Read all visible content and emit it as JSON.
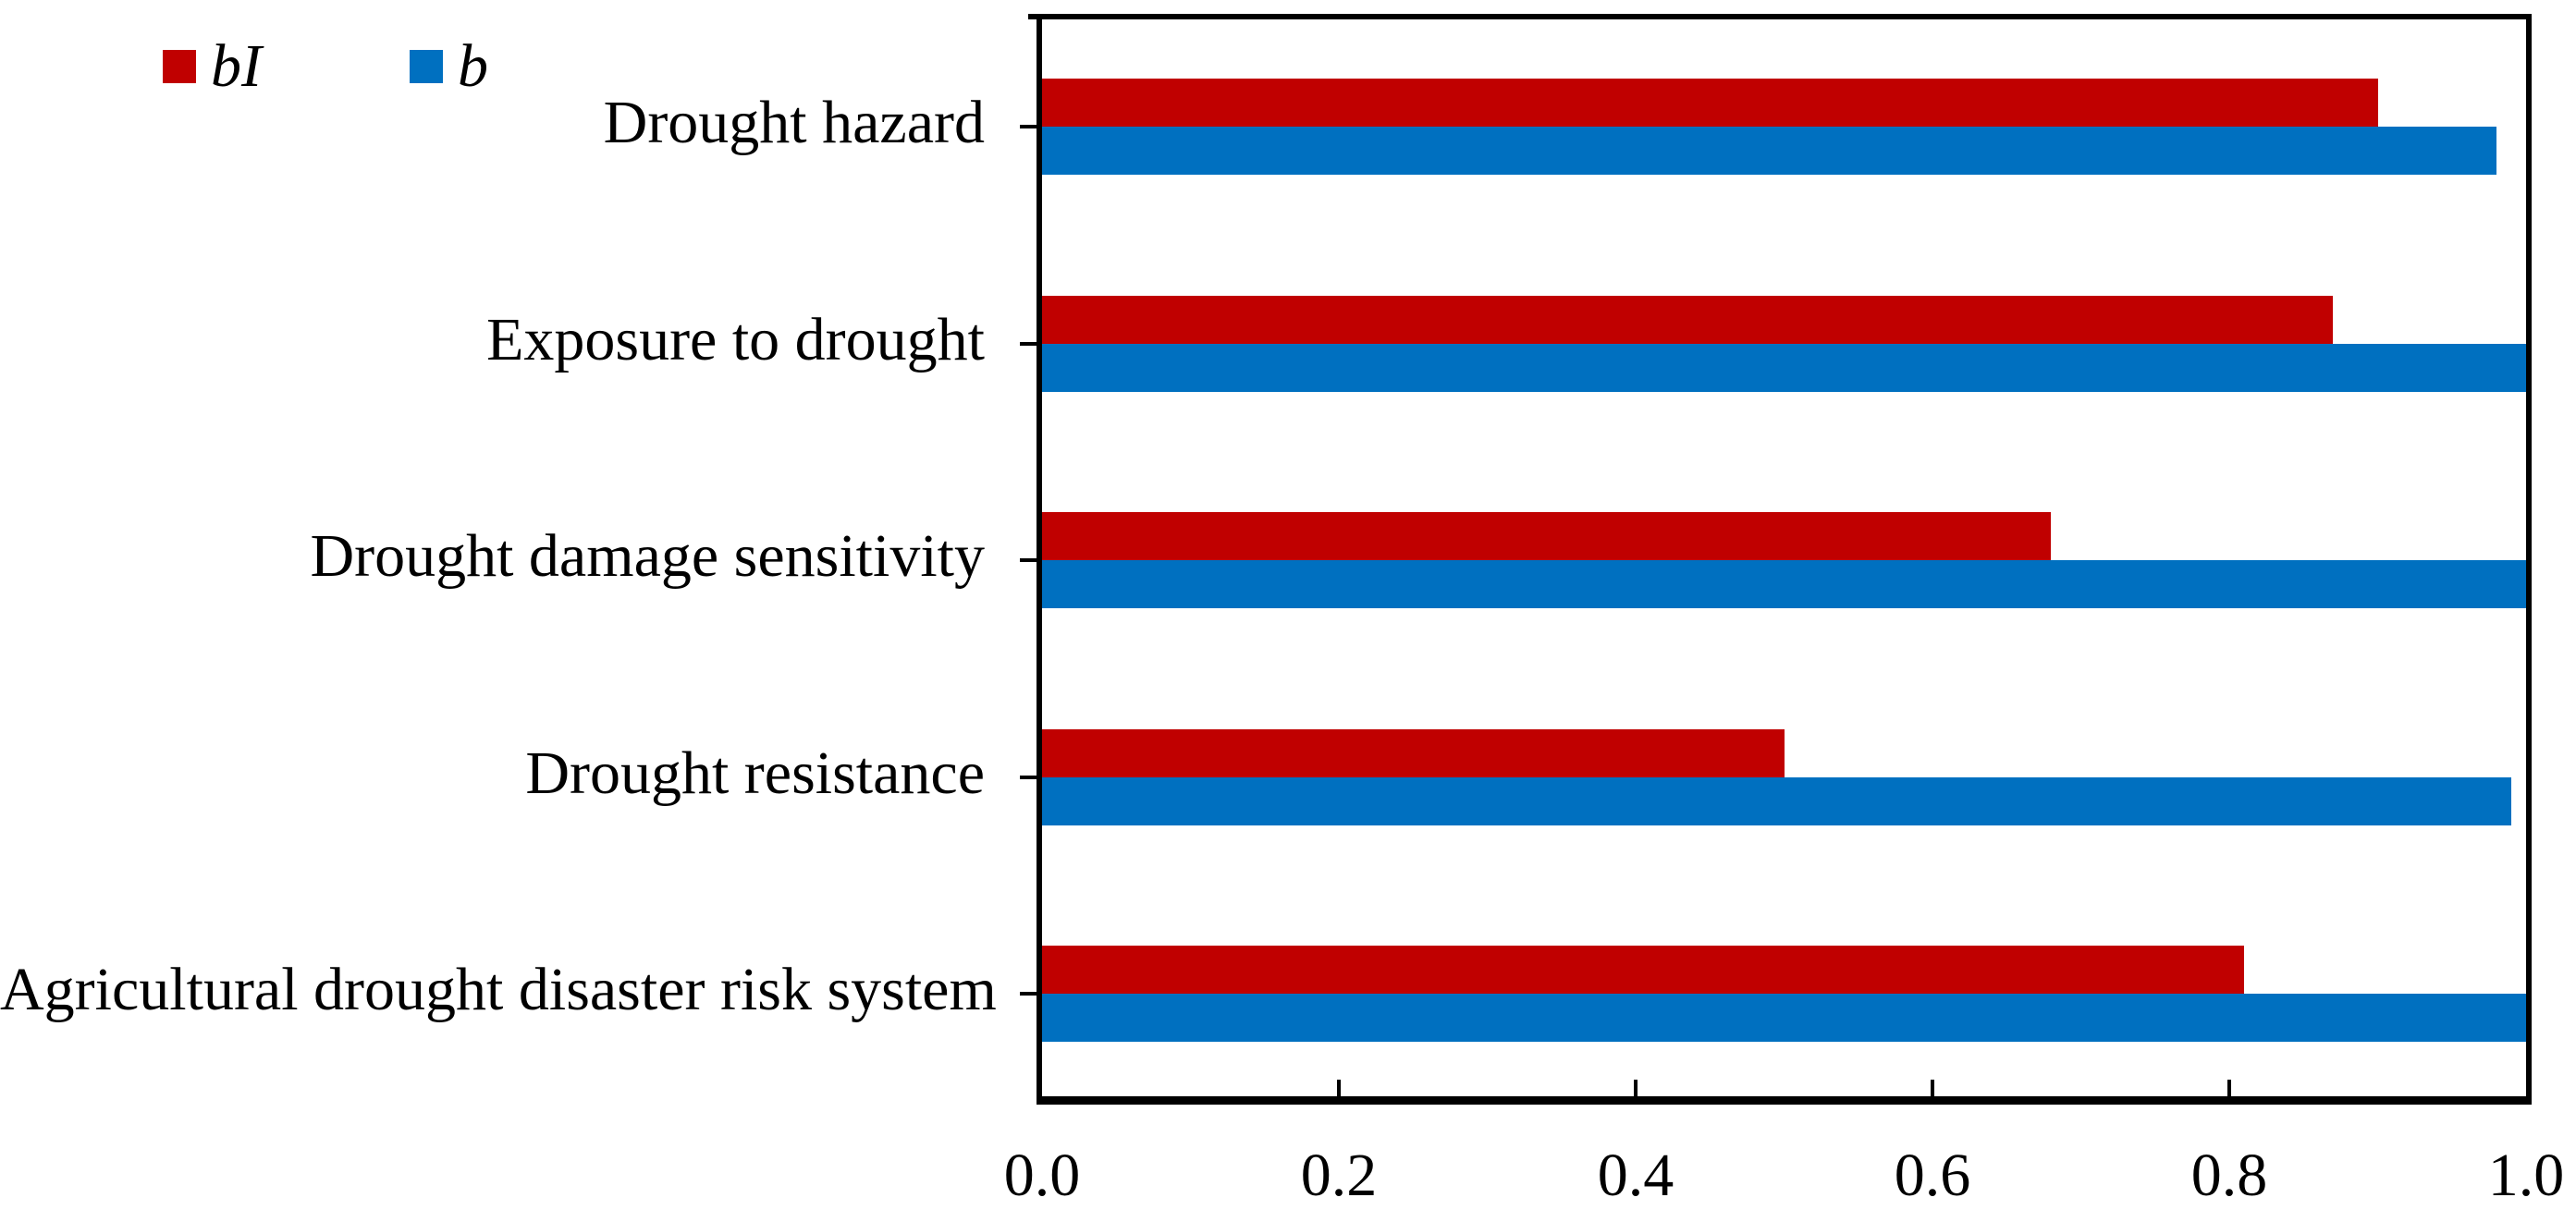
{
  "chart_data": {
    "type": "bar",
    "orientation": "horizontal",
    "title": "",
    "categories": [
      "Drought hazard",
      "Exposure to drought",
      "Drought damage sensitivity",
      "Drought resistance",
      "Agricultural drought disaster risk system"
    ],
    "series": [
      {
        "name": "bI",
        "color": "#C00000",
        "values": [
          0.9,
          0.87,
          0.68,
          0.5,
          0.81
        ]
      },
      {
        "name": "b",
        "color": "#0070C0",
        "values": [
          0.98,
          1.0,
          1.0,
          0.99,
          1.0
        ]
      }
    ],
    "xlim": [
      0.0,
      1.0
    ],
    "x_tick_labels": [
      "0.0",
      "0.2",
      "0.4",
      "0.6",
      "0.8",
      "1.0"
    ],
    "x_tick_values": [
      0.0,
      0.2,
      0.4,
      0.6,
      0.8,
      1.0
    ],
    "grid": false,
    "legend_position": "top-left",
    "axis_color": "#000000",
    "text_color": "#000000",
    "background_color": "#FFFFFF"
  }
}
